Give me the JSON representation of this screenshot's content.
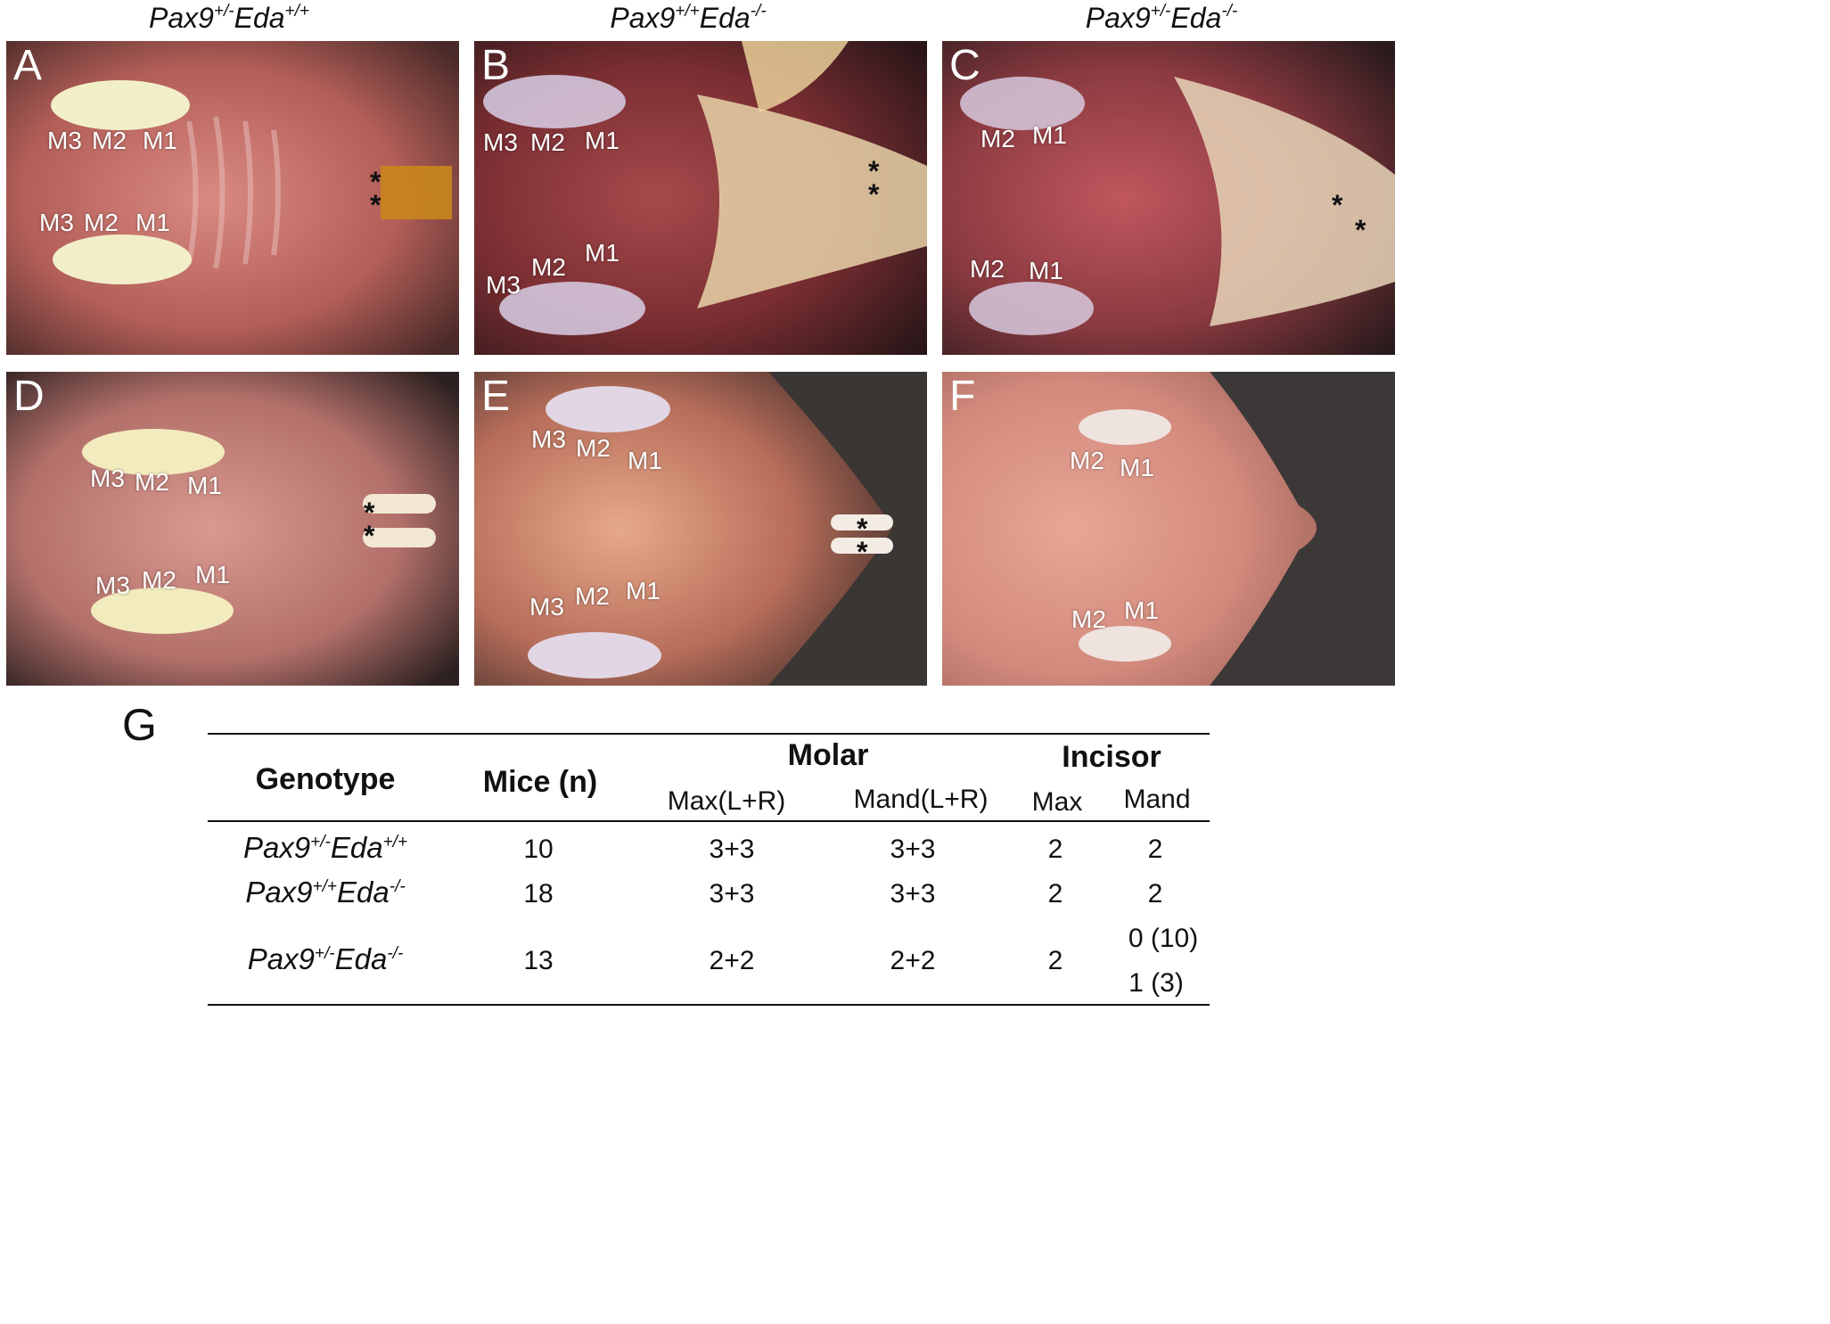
{
  "column_titles": [
    {
      "base1": "Pax9",
      "sup1": "+/-",
      "base2": "Eda",
      "sup2": "+/+"
    },
    {
      "base1": "Pax9",
      "sup1": "+/+",
      "base2": "Eda",
      "sup2": "-/-"
    },
    {
      "base1": "Pax9",
      "sup1": "+/-",
      "base2": "Eda",
      "sup2": "-/-"
    }
  ],
  "panels": {
    "A": {
      "letter": "A",
      "upper": [
        "M3",
        "M2",
        "M1"
      ],
      "lower": [
        "M3",
        "M2",
        "M1"
      ],
      "asterisk": "*"
    },
    "B": {
      "letter": "B",
      "upper": [
        "M3",
        "M2",
        "M1"
      ],
      "lower": [
        "M3",
        "M2",
        "M1"
      ],
      "asterisk": "*"
    },
    "C": {
      "letter": "C",
      "upper": [
        "M2",
        "M1"
      ],
      "lower": [
        "M2",
        "M1"
      ],
      "asterisk": "*"
    },
    "D": {
      "letter": "D",
      "upper": [
        "M3",
        "M2",
        "M1"
      ],
      "lower": [
        "M3",
        "M2",
        "M1"
      ],
      "asterisk": "*"
    },
    "E": {
      "letter": "E",
      "upper": [
        "M3",
        "M2",
        "M1"
      ],
      "lower": [
        "M3",
        "M2",
        "M1"
      ],
      "asterisk": "*"
    },
    "F": {
      "letter": "F",
      "upper": [
        "M2",
        "M1"
      ],
      "lower": [
        "M2",
        "M1"
      ]
    }
  },
  "arrow_color": "#e8201c",
  "table": {
    "label": "G",
    "headers": {
      "genotype": "Genotype",
      "mice": "Mice (n)",
      "molar": "Molar",
      "incisor": "Incisor",
      "max_lr": "Max(L+R)",
      "mand_lr": "Mand(L+R)",
      "max": "Max",
      "mand": "Mand"
    },
    "rows": [
      {
        "geno": {
          "base1": "Pax9",
          "sup1": "+/-",
          "base2": "Eda",
          "sup2": "+/+"
        },
        "mice": "10",
        "molar_max": "3+3",
        "molar_mand": "3+3",
        "inc_max": "2",
        "inc_mand": "2"
      },
      {
        "geno": {
          "base1": "Pax9",
          "sup1": "+/+",
          "base2": "Eda",
          "sup2": "-/-"
        },
        "mice": "18",
        "molar_max": "3+3",
        "molar_mand": "3+3",
        "inc_max": "2",
        "inc_mand": "2"
      },
      {
        "geno": {
          "base1": "Pax9",
          "sup1": "+/-",
          "base2": "Eda",
          "sup2": "-/-"
        },
        "mice": "13",
        "molar_max": "2+2",
        "molar_mand": "2+2",
        "inc_max": "2",
        "inc_mand": "0 (10)",
        "inc_mand_2": "1 (3)"
      }
    ]
  }
}
